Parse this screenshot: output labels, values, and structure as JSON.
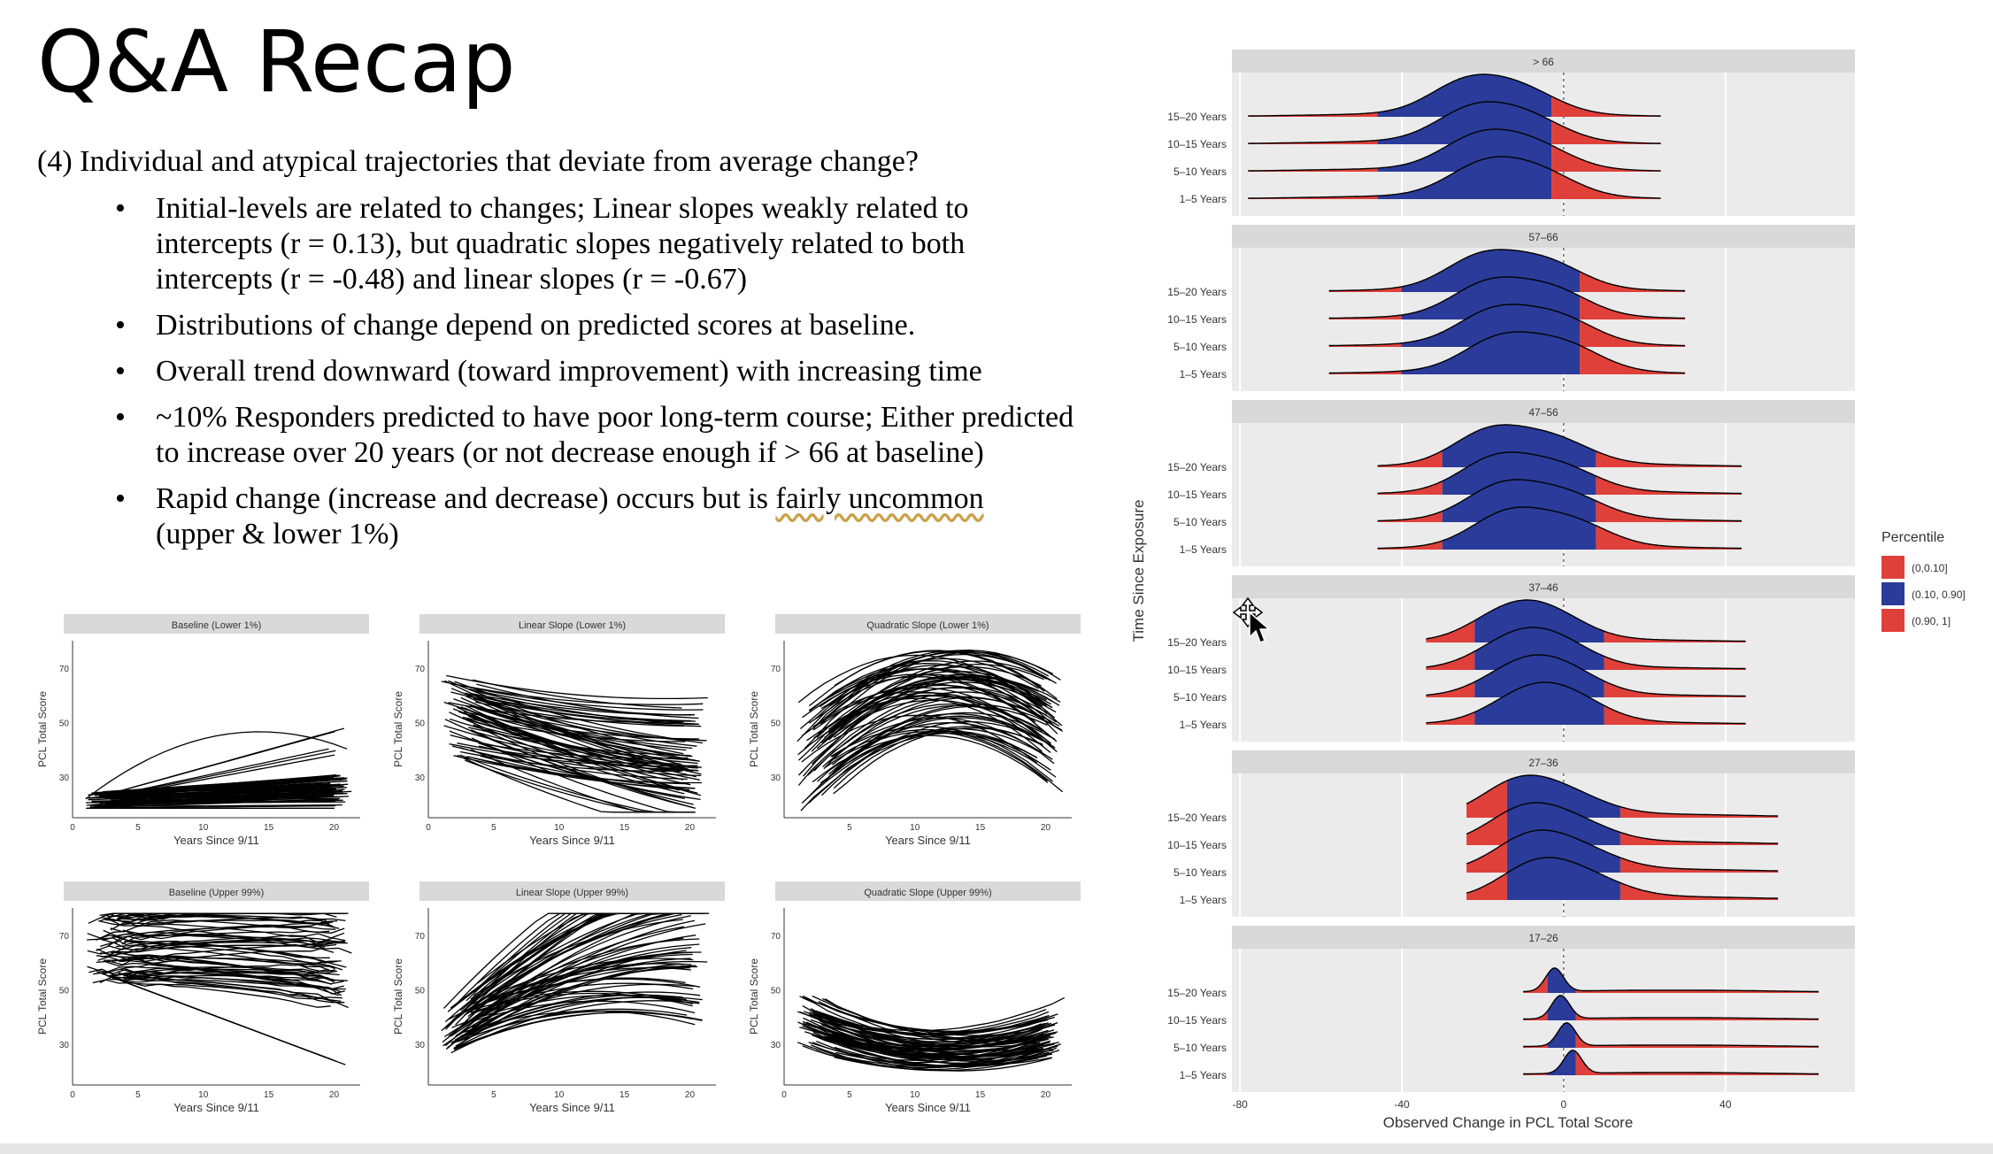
{
  "slide": {
    "title": "Q&A Recap",
    "question": "(4) Individual and atypical trajectories that deviate from average change?",
    "bullets": [
      "Initial-levels are related to changes; Linear slopes weakly related to intercepts (r = 0.13), but quadratic slopes negatively related to both intercepts (r = -0.48) and linear slopes (r = -0.67)",
      "Distributions of change depend on predicted scores at baseline.",
      "Overall trend downward (toward improvement) with increasing time",
      "~10% Responders predicted to have poor long-term course; Either predicted to increase over 20 years (or not decrease enough if > 66 at baseline)",
      "Rapid change (increase and decrease) occurs but is",
      "fairly uncommon",
      "(upper & lower 1%)"
    ]
  },
  "chart_data": [
    {
      "type": "line",
      "title": "Baseline (Lower 1%)",
      "xlabel": "Years Since 9/11",
      "ylabel": "PCL Total Score",
      "x_ticks": [
        "0",
        "5",
        "10",
        "15",
        "20"
      ],
      "y_ticks": [
        "30",
        "50",
        "70"
      ],
      "xlim": [
        0,
        22
      ],
      "ylim": [
        15,
        80
      ],
      "pattern": "flat_low"
    },
    {
      "type": "line",
      "title": "Linear Slope (Lower 1%)",
      "xlabel": "Years Since 9/11",
      "ylabel": "PCL Total Score",
      "x_ticks": [
        "0",
        "5",
        "10",
        "15",
        "20"
      ],
      "y_ticks": [
        "30",
        "50",
        "70"
      ],
      "xlim": [
        0,
        22
      ],
      "ylim": [
        15,
        80
      ],
      "pattern": "decreasing"
    },
    {
      "type": "line",
      "title": "Quadratic Slope (Lower 1%)",
      "xlabel": "Years Since 9/11",
      "ylabel": "PCL Total Score",
      "x_ticks": [
        "5",
        "10",
        "15",
        "20"
      ],
      "y_ticks": [
        "30",
        "50",
        "70"
      ],
      "xlim": [
        0,
        22
      ],
      "ylim": [
        15,
        80
      ],
      "pattern": "arch"
    },
    {
      "type": "line",
      "title": "Baseline (Upper 99%)",
      "xlabel": "Years Since 9/11",
      "ylabel": "PCL Total Score",
      "x_ticks": [
        "0",
        "5",
        "10",
        "15",
        "20"
      ],
      "y_ticks": [
        "30",
        "50",
        "70"
      ],
      "xlim": [
        0,
        22
      ],
      "ylim": [
        15,
        80
      ],
      "pattern": "high"
    },
    {
      "type": "line",
      "title": "Linear Slope (Upper 99%)",
      "xlabel": "Years Since 9/11",
      "ylabel": "PCL Total Score",
      "x_ticks": [
        "5",
        "10",
        "15",
        "20"
      ],
      "y_ticks": [
        "30",
        "50",
        "70"
      ],
      "xlim": [
        0,
        22
      ],
      "ylim": [
        15,
        80
      ],
      "pattern": "increasing"
    },
    {
      "type": "line",
      "title": "Quadratic Slope (Upper 99%)",
      "xlabel": "Years Since 9/11",
      "ylabel": "PCL Total Score",
      "x_ticks": [
        "0",
        "5",
        "10",
        "15",
        "20"
      ],
      "y_ticks": [
        "30",
        "50",
        "70"
      ],
      "xlim": [
        0,
        22
      ],
      "ylim": [
        15,
        80
      ],
      "pattern": "valley"
    },
    {
      "type": "area",
      "subtype": "ridgeline",
      "xlabel": "Observed Change in PCL Total Score",
      "ylabel": "Time Since Exposure",
      "x_ticks": [
        -80,
        -40,
        0,
        40
      ],
      "xlim": [
        -82,
        72
      ],
      "legend_title": "Percentile",
      "legend": [
        {
          "label": "(0,0.10]",
          "color": "#e0403a"
        },
        {
          "label": "(0.10, 0.90]",
          "color": "#2b3b9a"
        },
        {
          "label": "(0.90, 1]",
          "color": "#e0403a"
        }
      ],
      "rows": [
        "15–20 Years",
        "10–15 Years",
        "5–10 Years",
        "1–5 Years"
      ],
      "panels": [
        {
          "label": "> 66",
          "range": [
            -78,
            24
          ],
          "q10": -46,
          "q90": -3,
          "peaks": [
            [
              -22,
              1
            ],
            [
              -8,
              0.75
            ]
          ]
        },
        {
          "label": "57–66",
          "range": [
            -58,
            30
          ],
          "q10": -40,
          "q90": 4,
          "peaks": [
            [
              -18,
              1
            ],
            [
              -2,
              0.8
            ]
          ]
        },
        {
          "label": "47–56",
          "range": [
            -46,
            44
          ],
          "q10": -30,
          "q90": 8,
          "peaks": [
            [
              -16,
              1
            ],
            [
              0,
              0.7
            ]
          ]
        },
        {
          "label": "37–46",
          "range": [
            -34,
            45
          ],
          "q10": -22,
          "q90": 10,
          "peaks": [
            [
              -12,
              1
            ],
            [
              -1,
              0.9
            ]
          ]
        },
        {
          "label": "27–36",
          "range": [
            -24,
            53
          ],
          "q10": -14,
          "q90": 14,
          "peaks": [
            [
              -9,
              1
            ],
            [
              4,
              0.5
            ]
          ]
        },
        {
          "label": "17–26",
          "range": [
            -10,
            63
          ],
          "q10": -4,
          "q90": 3,
          "peaks": [
            [
              0,
              1
            ]
          ]
        }
      ]
    }
  ],
  "colors": {
    "tail": "#e0403a",
    "middle": "#2b3b9a",
    "panel_bg": "#ebebeb",
    "strip": "#d9d9d9"
  },
  "cursor_icon": "move-cursor-icon"
}
